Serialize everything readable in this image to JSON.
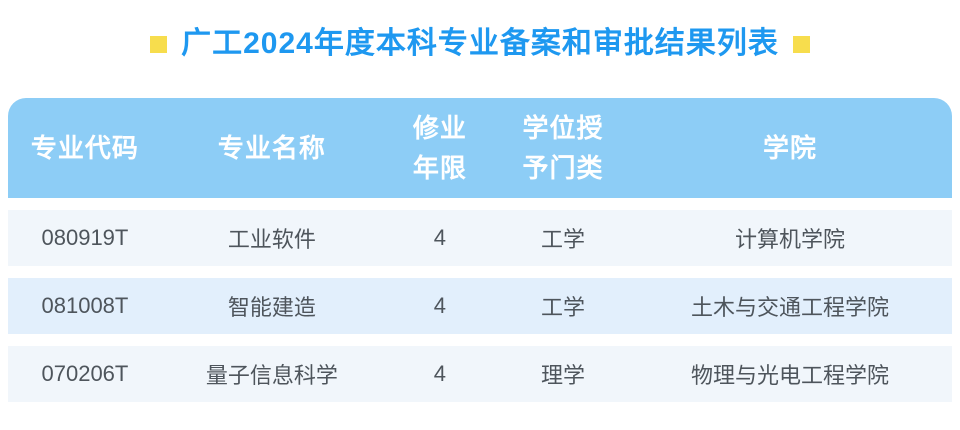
{
  "theme": {
    "title-color": "#1e98f0",
    "bullet-color": "#f7dd4d",
    "header-bg": "#8dcdf6",
    "header-fg": "#ffffff",
    "row-odd": "#f1f6fb",
    "row-even": "#e2effc",
    "cell-fg": "#4e555c"
  },
  "title": {
    "text": "广工2024年度本科专业备案和审批结果列表"
  },
  "icons": {
    "left_bullet": "yellow-square",
    "right_bullet": "yellow-square"
  },
  "table": {
    "columns": [
      "专业代码",
      "专业名称",
      "修业\n年限",
      "学位授\n予门类",
      "学院"
    ],
    "rows": [
      {
        "code": "080919T",
        "name": "工业软件",
        "years": "4",
        "degree": "工学",
        "college": "计算机学院"
      },
      {
        "code": "081008T",
        "name": "智能建造",
        "years": "4",
        "degree": "工学",
        "college": "土木与交通工程学院"
      },
      {
        "code": "070206T",
        "name": "量子信息科学",
        "years": "4",
        "degree": "理学",
        "college": "物理与光电工程学院"
      }
    ]
  }
}
